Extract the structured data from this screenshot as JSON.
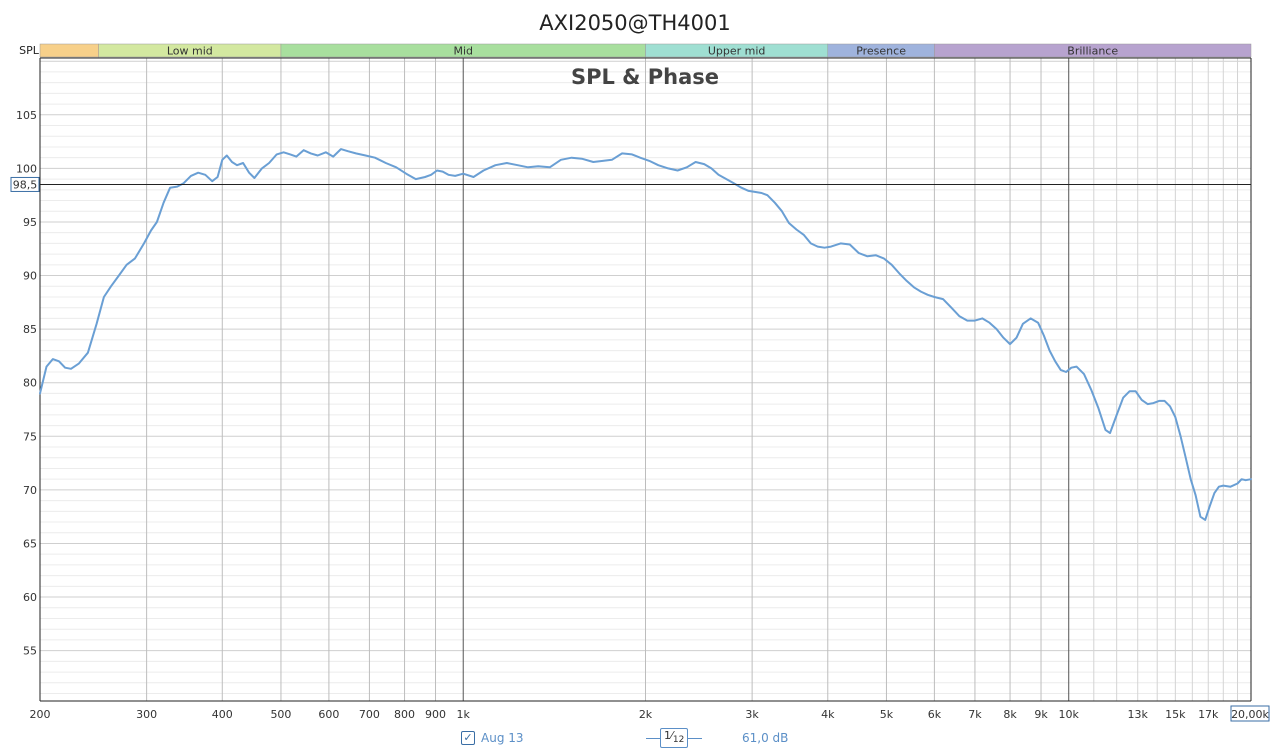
{
  "window_title": "AXI2050@TH4001",
  "chart_data": {
    "type": "line",
    "title": "SPL & Phase",
    "y_axis_label": "SPL",
    "x_scale": "log",
    "xlim": [
      200,
      20000
    ],
    "ylim": [
      50.3,
      110.3
    ],
    "y_ticks": [
      55,
      60,
      65,
      70,
      75,
      80,
      85,
      90,
      95,
      100,
      105
    ],
    "x_ticks": [
      {
        "value": 200,
        "label": "200"
      },
      {
        "value": 300,
        "label": "300"
      },
      {
        "value": 400,
        "label": "400"
      },
      {
        "value": 500,
        "label": "500"
      },
      {
        "value": 600,
        "label": "600"
      },
      {
        "value": 700,
        "label": "700"
      },
      {
        "value": 800,
        "label": "800"
      },
      {
        "value": 900,
        "label": "900"
      },
      {
        "value": 1000,
        "label": "1k"
      },
      {
        "value": 2000,
        "label": "2k"
      },
      {
        "value": 3000,
        "label": "3k"
      },
      {
        "value": 4000,
        "label": "4k"
      },
      {
        "value": 5000,
        "label": "5k"
      },
      {
        "value": 6000,
        "label": "6k"
      },
      {
        "value": 7000,
        "label": "7k"
      },
      {
        "value": 8000,
        "label": "8k"
      },
      {
        "value": 9000,
        "label": "9k"
      },
      {
        "value": 10000,
        "label": "10k"
      },
      {
        "value": 13000,
        "label": "13k"
      },
      {
        "value": 15000,
        "label": "15k"
      },
      {
        "value": 17000,
        "label": "17k"
      }
    ],
    "x_cursor_label": "20,00k",
    "cursor_level": {
      "value": 98.5,
      "label": "98,5"
    },
    "grid": true,
    "bands": [
      {
        "name": "",
        "from": 200,
        "to": 250,
        "color": "#f7d08a"
      },
      {
        "name": "Low mid",
        "from": 250,
        "to": 500,
        "color": "#d3e8a0"
      },
      {
        "name": "Mid",
        "from": 500,
        "to": 2000,
        "color": "#a8df9e"
      },
      {
        "name": "Upper mid",
        "from": 2000,
        "to": 4000,
        "color": "#9fdfd2"
      },
      {
        "name": "Presence",
        "from": 4000,
        "to": 6000,
        "color": "#9fb3dd"
      },
      {
        "name": "Brilliance",
        "from": 6000,
        "to": 20000,
        "color": "#b7a3cf"
      }
    ],
    "series": [
      {
        "name": "Aug 13",
        "color": "#6a9fd4",
        "points": [
          [
            200,
            79.0
          ],
          [
            205,
            81.5
          ],
          [
            210,
            82.2
          ],
          [
            215,
            82.0
          ],
          [
            220,
            81.4
          ],
          [
            225,
            81.3
          ],
          [
            232,
            81.8
          ],
          [
            240,
            82.8
          ],
          [
            248,
            85.5
          ],
          [
            255,
            88.0
          ],
          [
            262,
            89.0
          ],
          [
            270,
            90.0
          ],
          [
            278,
            91.0
          ],
          [
            287,
            91.6
          ],
          [
            297,
            93.0
          ],
          [
            305,
            94.2
          ],
          [
            312,
            95.0
          ],
          [
            320,
            96.8
          ],
          [
            328,
            98.2
          ],
          [
            337,
            98.3
          ],
          [
            345,
            98.6
          ],
          [
            355,
            99.3
          ],
          [
            365,
            99.6
          ],
          [
            375,
            99.4
          ],
          [
            385,
            98.8
          ],
          [
            393,
            99.2
          ],
          [
            400,
            100.8
          ],
          [
            407,
            101.2
          ],
          [
            415,
            100.6
          ],
          [
            423,
            100.3
          ],
          [
            433,
            100.5
          ],
          [
            443,
            99.6
          ],
          [
            452,
            99.1
          ],
          [
            465,
            100.0
          ],
          [
            478,
            100.5
          ],
          [
            492,
            101.3
          ],
          [
            505,
            101.5
          ],
          [
            518,
            101.3
          ],
          [
            530,
            101.1
          ],
          [
            545,
            101.7
          ],
          [
            560,
            101.4
          ],
          [
            575,
            101.2
          ],
          [
            593,
            101.5
          ],
          [
            610,
            101.1
          ],
          [
            628,
            101.8
          ],
          [
            645,
            101.6
          ],
          [
            665,
            101.4
          ],
          [
            690,
            101.2
          ],
          [
            715,
            101.0
          ],
          [
            745,
            100.5
          ],
          [
            775,
            100.1
          ],
          [
            805,
            99.5
          ],
          [
            835,
            99.0
          ],
          [
            865,
            99.2
          ],
          [
            885,
            99.4
          ],
          [
            905,
            99.8
          ],
          [
            925,
            99.7
          ],
          [
            945,
            99.4
          ],
          [
            970,
            99.3
          ],
          [
            1000,
            99.5
          ],
          [
            1040,
            99.2
          ],
          [
            1080,
            99.8
          ],
          [
            1130,
            100.3
          ],
          [
            1180,
            100.5
          ],
          [
            1230,
            100.3
          ],
          [
            1280,
            100.1
          ],
          [
            1330,
            100.2
          ],
          [
            1390,
            100.1
          ],
          [
            1450,
            100.8
          ],
          [
            1510,
            101.0
          ],
          [
            1570,
            100.9
          ],
          [
            1640,
            100.6
          ],
          [
            1700,
            100.7
          ],
          [
            1760,
            100.8
          ],
          [
            1830,
            101.4
          ],
          [
            1900,
            101.3
          ],
          [
            1960,
            101.0
          ],
          [
            2030,
            100.7
          ],
          [
            2100,
            100.3
          ],
          [
            2180,
            100.0
          ],
          [
            2260,
            99.8
          ],
          [
            2340,
            100.1
          ],
          [
            2420,
            100.6
          ],
          [
            2500,
            100.4
          ],
          [
            2570,
            100.0
          ],
          [
            2640,
            99.4
          ],
          [
            2720,
            99.0
          ],
          [
            2800,
            98.6
          ],
          [
            2880,
            98.2
          ],
          [
            2960,
            97.9
          ],
          [
            3040,
            97.8
          ],
          [
            3110,
            97.7
          ],
          [
            3180,
            97.5
          ],
          [
            3270,
            96.8
          ],
          [
            3360,
            96.0
          ],
          [
            3450,
            94.9
          ],
          [
            3550,
            94.3
          ],
          [
            3650,
            93.8
          ],
          [
            3750,
            93.0
          ],
          [
            3850,
            92.7
          ],
          [
            3950,
            92.6
          ],
          [
            4050,
            92.7
          ],
          [
            4200,
            93.0
          ],
          [
            4350,
            92.9
          ],
          [
            4500,
            92.1
          ],
          [
            4650,
            91.8
          ],
          [
            4800,
            91.9
          ],
          [
            4950,
            91.6
          ],
          [
            5100,
            91.0
          ],
          [
            5250,
            90.2
          ],
          [
            5400,
            89.5
          ],
          [
            5550,
            88.9
          ],
          [
            5700,
            88.5
          ],
          [
            5850,
            88.2
          ],
          [
            6000,
            88.0
          ],
          [
            6200,
            87.8
          ],
          [
            6400,
            87.0
          ],
          [
            6600,
            86.2
          ],
          [
            6800,
            85.8
          ],
          [
            7000,
            85.8
          ],
          [
            7200,
            86.0
          ],
          [
            7400,
            85.6
          ],
          [
            7600,
            85.0
          ],
          [
            7800,
            84.2
          ],
          [
            8000,
            83.6
          ],
          [
            8200,
            84.2
          ],
          [
            8400,
            85.5
          ],
          [
            8650,
            86.0
          ],
          [
            8900,
            85.6
          ],
          [
            9100,
            84.4
          ],
          [
            9300,
            83.0
          ],
          [
            9500,
            82.0
          ],
          [
            9700,
            81.2
          ],
          [
            9900,
            81.0
          ],
          [
            10100,
            81.4
          ],
          [
            10300,
            81.5
          ],
          [
            10600,
            80.8
          ],
          [
            10900,
            79.3
          ],
          [
            11200,
            77.6
          ],
          [
            11500,
            75.6
          ],
          [
            11700,
            75.3
          ],
          [
            12000,
            77.0
          ],
          [
            12300,
            78.6
          ],
          [
            12600,
            79.2
          ],
          [
            12900,
            79.2
          ],
          [
            13200,
            78.4
          ],
          [
            13500,
            78.0
          ],
          [
            13800,
            78.1
          ],
          [
            14100,
            78.3
          ],
          [
            14400,
            78.3
          ],
          [
            14700,
            77.8
          ],
          [
            15000,
            76.8
          ],
          [
            15300,
            75.0
          ],
          [
            15600,
            73.0
          ],
          [
            15900,
            71.0
          ],
          [
            16200,
            69.5
          ],
          [
            16500,
            67.5
          ],
          [
            16800,
            67.2
          ],
          [
            17100,
            68.5
          ],
          [
            17400,
            69.7
          ],
          [
            17700,
            70.3
          ],
          [
            18000,
            70.4
          ],
          [
            18500,
            70.3
          ],
          [
            19000,
            70.6
          ],
          [
            19300,
            71.0
          ],
          [
            19600,
            70.9
          ],
          [
            20000,
            71.0
          ]
        ]
      }
    ]
  },
  "legend": {
    "series_label": "Aug 13",
    "checked_mark": "✓",
    "smoothing_numerator": "1",
    "smoothing_denominator": "12",
    "offset_value": "61,0 dB"
  }
}
